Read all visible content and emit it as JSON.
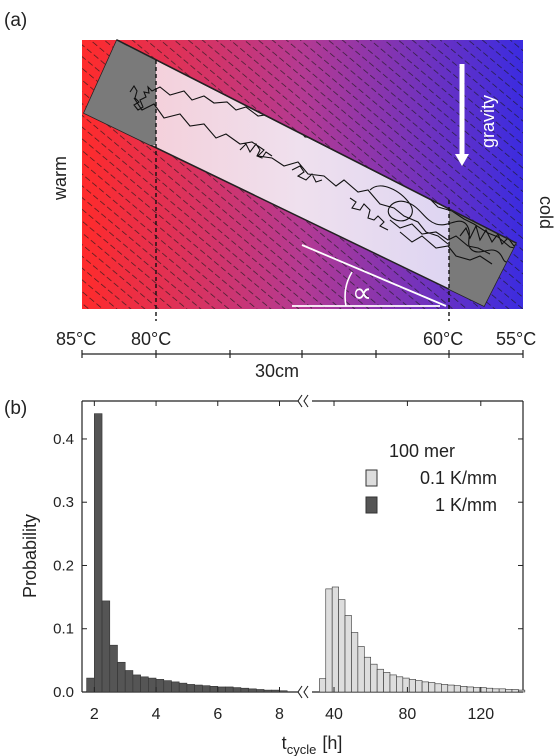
{
  "panel_a": {
    "label": "(a)",
    "warm_label": "warm",
    "cold_label": "cold",
    "gravity_label": "gravity",
    "angle_symbol": "∝",
    "temps": [
      "85°C",
      "80°C",
      "60°C",
      "55°C"
    ],
    "scale_label": "30cm",
    "colors": {
      "warm": "#ff2a2a",
      "mid": "#b83a8a",
      "cold": "#3a2ad8",
      "channel_light": "#f1cfdc",
      "channel_dark": "#7a7a7a"
    }
  },
  "panel_b": {
    "label": "(b)",
    "legend_title": "100 mer",
    "legend_items": [
      {
        "label": "0.1 K/mm",
        "color": "#dddddd"
      },
      {
        "label": "1 K/mm",
        "color": "#555555"
      }
    ],
    "ylabel": "Probability",
    "xlabel_main": "t",
    "xlabel_sub": "cycle",
    "xlabel_unit": "[h]"
  },
  "chart_data": [
    {
      "type": "bar",
      "name": "1 K/mm",
      "x_range": [
        1.6,
        8.6
      ],
      "bin_width": 0.25,
      "x": [
        1.875,
        2.125,
        2.375,
        2.625,
        2.875,
        3.125,
        3.375,
        3.625,
        3.875,
        4.125,
        4.375,
        4.625,
        4.875,
        5.125,
        5.375,
        5.625,
        5.875,
        6.125,
        6.375,
        6.625,
        6.875,
        7.125,
        7.375,
        7.625,
        7.875,
        8.125
      ],
      "values": [
        0.022,
        0.44,
        0.144,
        0.074,
        0.047,
        0.034,
        0.027,
        0.024,
        0.022,
        0.02,
        0.018,
        0.016,
        0.014,
        0.012,
        0.011,
        0.01,
        0.009,
        0.008,
        0.008,
        0.007,
        0.006,
        0.005,
        0.004,
        0.003,
        0.003,
        0.002
      ],
      "xticks": [
        2,
        4,
        6,
        8
      ],
      "yticks": [
        0.0,
        0.1,
        0.2,
        0.3,
        0.4
      ],
      "ylim": [
        0,
        0.46
      ]
    },
    {
      "type": "bar",
      "name": "0.1 K/mm",
      "x_range": [
        28,
        143
      ],
      "bin_width": 3.5,
      "x": [
        33.75,
        37.25,
        40.75,
        44.25,
        47.75,
        51.25,
        54.75,
        58.25,
        61.75,
        65.25,
        68.75,
        72.25,
        75.75,
        79.25,
        82.75,
        86.25,
        89.75,
        93.25,
        96.75,
        100.25,
        103.75,
        107.25,
        110.75,
        114.25,
        117.75,
        121.25,
        124.75,
        128.25,
        131.75,
        135.25,
        138.75,
        142.25
      ],
      "values": [
        0.021,
        0.163,
        0.166,
        0.146,
        0.121,
        0.094,
        0.072,
        0.055,
        0.044,
        0.036,
        0.031,
        0.027,
        0.024,
        0.022,
        0.02,
        0.018,
        0.016,
        0.015,
        0.013,
        0.012,
        0.011,
        0.01,
        0.009,
        0.008,
        0.007,
        0.007,
        0.006,
        0.005,
        0.005,
        0.004,
        0.004,
        0.003
      ],
      "xticks": [
        40,
        80,
        120
      ],
      "ylim": [
        0,
        0.46
      ]
    }
  ]
}
